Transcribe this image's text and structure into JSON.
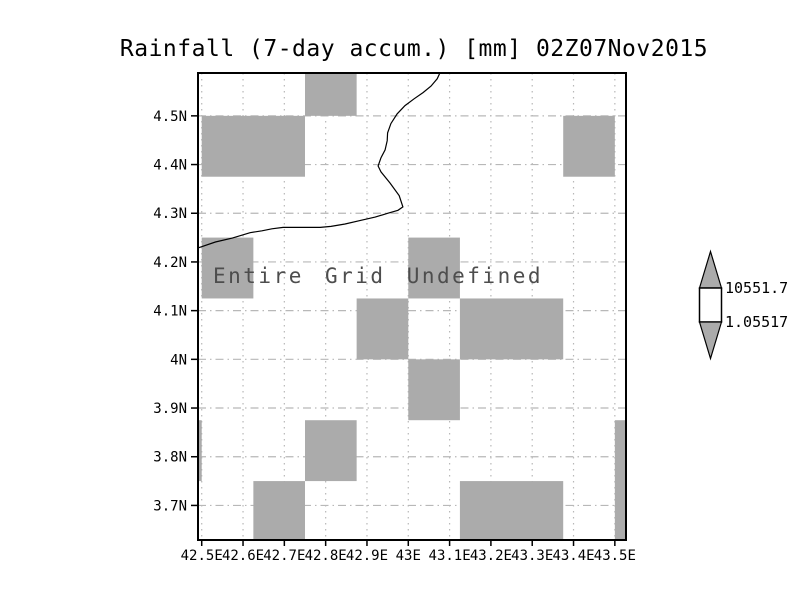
{
  "title": "Rainfall (7-day accum.) [mm] 02Z07Nov2015",
  "annotation": "Entire Grid Undefined",
  "colorbar": {
    "max_label": "10551.7",
    "min_label": "1.05517"
  },
  "chart_data": {
    "type": "heatmap",
    "title": "Rainfall (7-day accum.) [mm] 02Z07Nov2015",
    "annotation": "Entire Grid Undefined",
    "xlabel": "",
    "ylabel": "",
    "xlim": [
      42.491,
      43.527
    ],
    "ylim": [
      3.629,
      4.588
    ],
    "grid": true,
    "x_ticks": [
      {
        "value": 42.5,
        "label": "42.5E"
      },
      {
        "value": 42.6,
        "label": "42.6E"
      },
      {
        "value": 42.7,
        "label": "42.7E"
      },
      {
        "value": 42.8,
        "label": "42.8E"
      },
      {
        "value": 42.9,
        "label": "42.9E"
      },
      {
        "value": 43.0,
        "label": "43E"
      },
      {
        "value": 43.1,
        "label": "43.1E"
      },
      {
        "value": 43.2,
        "label": "43.2E"
      },
      {
        "value": 43.3,
        "label": "43.3E"
      },
      {
        "value": 43.4,
        "label": "43.4E"
      },
      {
        "value": 43.5,
        "label": "43.5E"
      }
    ],
    "y_ticks": [
      {
        "value": 4.5,
        "label": "4.5N"
      },
      {
        "value": 4.4,
        "label": "4.4N"
      },
      {
        "value": 4.3,
        "label": "4.3N"
      },
      {
        "value": 4.2,
        "label": "4.2N"
      },
      {
        "value": 4.1,
        "label": "4.1N"
      },
      {
        "value": 4.0,
        "label": "4N"
      },
      {
        "value": 3.9,
        "label": "3.9N"
      },
      {
        "value": 3.8,
        "label": "3.8N"
      },
      {
        "value": 3.7,
        "label": "3.7N"
      }
    ],
    "undefined_cells": [
      [
        42.75,
        4.5,
        42.875,
        4.625
      ],
      [
        42.5,
        4.375,
        42.75,
        4.5
      ],
      [
        43.375,
        4.375,
        43.5,
        4.5
      ],
      [
        42.5,
        4.125,
        42.625,
        4.25
      ],
      [
        43.0,
        4.125,
        43.125,
        4.25
      ],
      [
        42.875,
        4.0,
        43.0,
        4.125
      ],
      [
        43.125,
        4.0,
        43.375,
        4.125
      ],
      [
        43.0,
        3.875,
        43.125,
        4.0
      ],
      [
        42.375,
        3.75,
        42.5,
        3.875
      ],
      [
        42.75,
        3.75,
        42.875,
        3.875
      ],
      [
        43.5,
        3.625,
        43.625,
        3.875
      ],
      [
        42.625,
        3.625,
        42.75,
        3.75
      ],
      [
        43.125,
        3.625,
        43.375,
        3.75
      ]
    ],
    "coastline": [
      [
        42.492,
        4.229
      ],
      [
        42.533,
        4.241
      ],
      [
        42.574,
        4.249
      ],
      [
        42.617,
        4.26
      ],
      [
        42.646,
        4.264
      ],
      [
        42.67,
        4.268
      ],
      [
        42.697,
        4.271
      ],
      [
        42.787,
        4.271
      ],
      [
        42.813,
        4.273
      ],
      [
        42.847,
        4.278
      ],
      [
        42.883,
        4.285
      ],
      [
        42.92,
        4.292
      ],
      [
        42.951,
        4.3
      ],
      [
        42.975,
        4.306
      ],
      [
        42.987,
        4.313
      ],
      [
        42.978,
        4.336
      ],
      [
        42.956,
        4.362
      ],
      [
        42.934,
        4.385
      ],
      [
        42.927,
        4.397
      ],
      [
        42.934,
        4.414
      ],
      [
        42.944,
        4.43
      ],
      [
        42.949,
        4.449
      ],
      [
        42.95,
        4.465
      ],
      [
        42.958,
        4.484
      ],
      [
        42.973,
        4.504
      ],
      [
        42.992,
        4.521
      ],
      [
        43.014,
        4.535
      ],
      [
        43.036,
        4.548
      ],
      [
        43.055,
        4.561
      ],
      [
        43.07,
        4.576
      ],
      [
        43.077,
        4.589
      ]
    ],
    "colorbar": {
      "labels": [
        "10551.7",
        "1.05517"
      ]
    },
    "legend_position": "right",
    "colors": {
      "cell": "#ababab",
      "grid": "#b8b8b8",
      "frame": "#000000",
      "coast": "#000000",
      "annotation": "#4d4d4d"
    }
  }
}
